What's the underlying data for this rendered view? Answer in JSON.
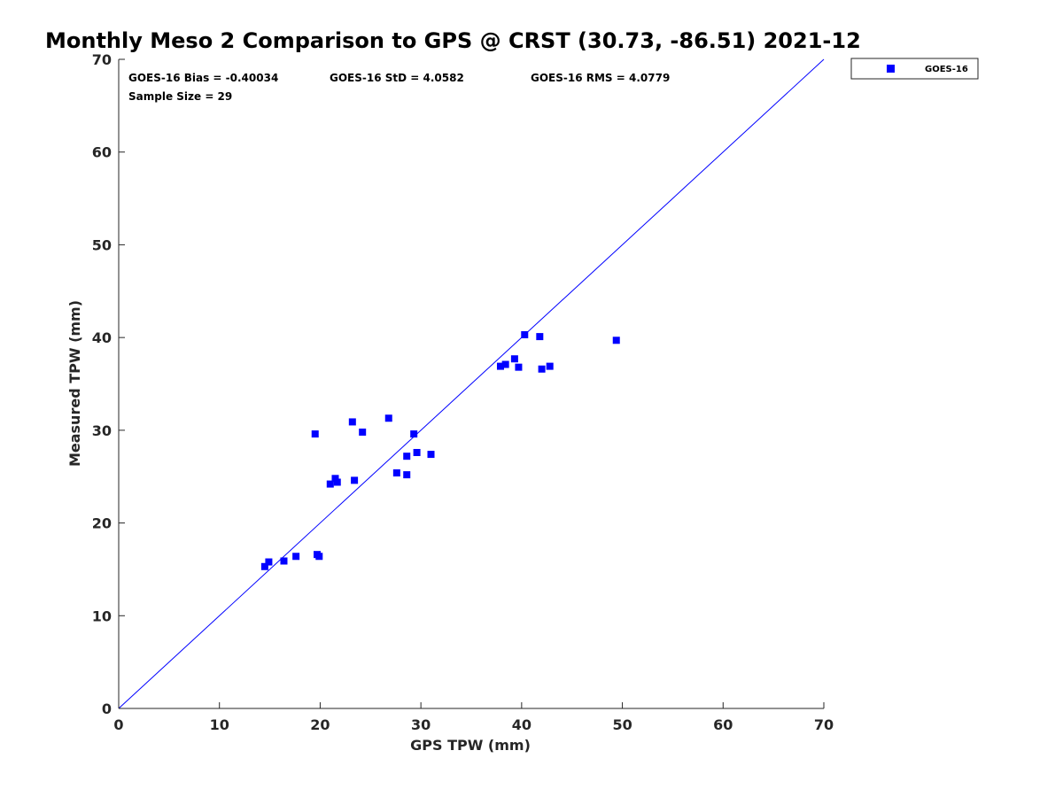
{
  "chart_data": {
    "type": "scatter",
    "title": "Monthly Meso 2 Comparison to GPS @ CRST (30.73, -86.51) 2021-12",
    "xlabel": "GPS TPW (mm)",
    "ylabel": "Measured TPW (mm)",
    "xlim": [
      0,
      70
    ],
    "ylim": [
      0,
      70
    ],
    "xticks": [
      0,
      10,
      20,
      30,
      40,
      50,
      60,
      70
    ],
    "yticks": [
      0,
      10,
      20,
      30,
      40,
      50,
      60,
      70
    ],
    "grid": false,
    "legend_position": "top-right outside",
    "reference_line": {
      "kind": "y=x",
      "color": "#0000ff"
    },
    "stats": {
      "bias": "GOES-16 Bias = -0.40034",
      "std": "GOES-16 StD = 4.0582",
      "rms": "GOES-16 RMS = 4.0779",
      "sample_size": "Sample Size = 29"
    },
    "series": [
      {
        "name": "GOES-16",
        "color": "#0000ff",
        "marker": "square",
        "points": [
          [
            14.5,
            15.3
          ],
          [
            14.9,
            15.8
          ],
          [
            16.4,
            15.9
          ],
          [
            17.6,
            16.4
          ],
          [
            19.7,
            16.6
          ],
          [
            19.9,
            16.4
          ],
          [
            19.5,
            29.6
          ],
          [
            21.0,
            24.2
          ],
          [
            21.5,
            24.8
          ],
          [
            21.7,
            24.4
          ],
          [
            23.2,
            30.9
          ],
          [
            23.4,
            24.6
          ],
          [
            24.2,
            29.8
          ],
          [
            26.8,
            31.3
          ],
          [
            27.6,
            25.4
          ],
          [
            28.6,
            27.2
          ],
          [
            28.6,
            25.2
          ],
          [
            29.3,
            29.6
          ],
          [
            29.6,
            27.6
          ],
          [
            31.0,
            27.4
          ],
          [
            37.9,
            36.9
          ],
          [
            38.4,
            37.1
          ],
          [
            39.3,
            37.7
          ],
          [
            39.7,
            36.8
          ],
          [
            40.3,
            40.3
          ],
          [
            41.8,
            40.1
          ],
          [
            42.0,
            36.6
          ],
          [
            42.8,
            36.9
          ],
          [
            49.4,
            39.7
          ]
        ]
      }
    ]
  }
}
